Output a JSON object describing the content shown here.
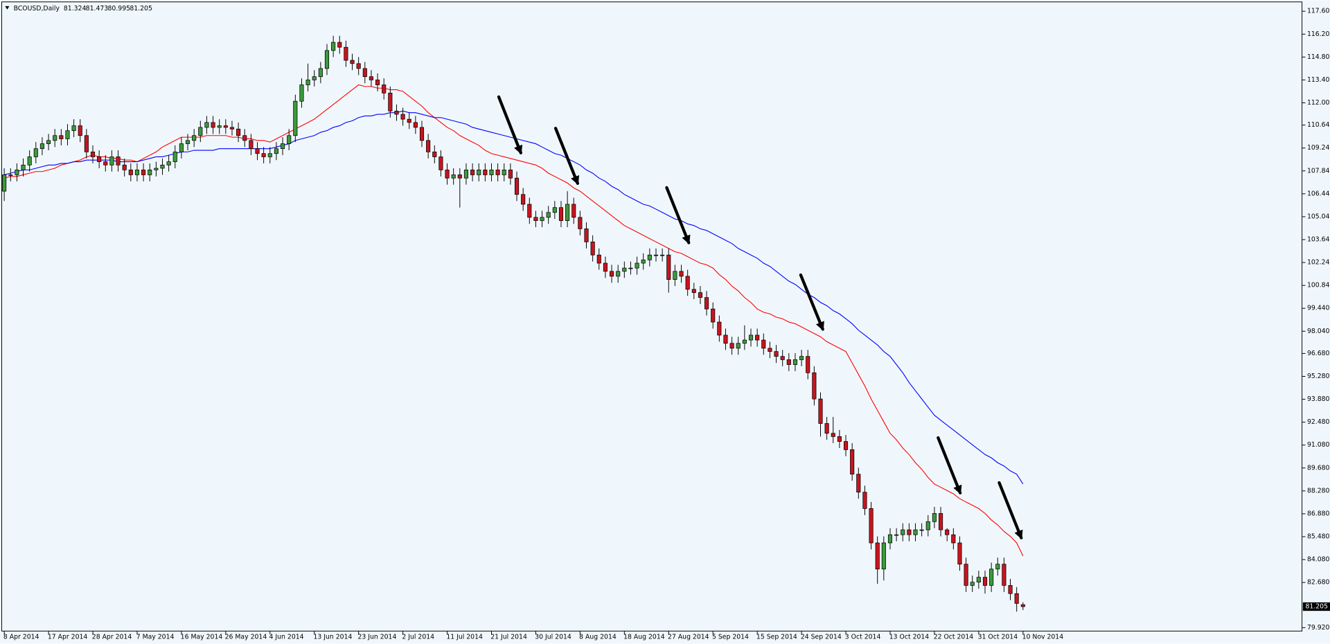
{
  "chart_data": {
    "type": "candlestick",
    "title": "BCOUSD,Daily",
    "categories": [
      "8 Apr 2014",
      null,
      null,
      null,
      null,
      null,
      null,
      "17 Apr 2014",
      null,
      null,
      null,
      null,
      null,
      null,
      "28 Apr 2014",
      null,
      null,
      null,
      null,
      null,
      null,
      "7 May 2014",
      null,
      null,
      null,
      null,
      null,
      null,
      "16 May 2014",
      null,
      null,
      null,
      null,
      null,
      null,
      "26 May 2014",
      null,
      null,
      null,
      null,
      null,
      null,
      "4 Jun 2014",
      null,
      null,
      null,
      null,
      null,
      null,
      "13 Jun 2014",
      null,
      null,
      null,
      null,
      null,
      null,
      "23 Jun 2014",
      null,
      null,
      null,
      null,
      null,
      null,
      "2 Jul 2014",
      null,
      null,
      null,
      null,
      null,
      null,
      "11 Jul 2014",
      null,
      null,
      null,
      null,
      null,
      null,
      "21 Jul 2014",
      null,
      null,
      null,
      null,
      null,
      null,
      "30 Jul 2014",
      null,
      null,
      null,
      null,
      null,
      null,
      "8 Aug 2014",
      null,
      null,
      null,
      null,
      null,
      null,
      "18 Aug 2014",
      null,
      null,
      null,
      null,
      null,
      null,
      "27 Aug 2014",
      null,
      null,
      null,
      null,
      null,
      null,
      "5 Sep 2014",
      null,
      null,
      null,
      null,
      null,
      null,
      "15 Sep 2014",
      null,
      null,
      null,
      null,
      null,
      null,
      "24 Sep 2014",
      null,
      null,
      null,
      null,
      null,
      null,
      "3 Oct 2014",
      null,
      null,
      null,
      null,
      null,
      null,
      "13 Oct 2014",
      null,
      null,
      null,
      null,
      null,
      null,
      "22 Oct 2014",
      null,
      null,
      null,
      null,
      null,
      null,
      "31 Oct 2014",
      null,
      null,
      null,
      null,
      null,
      null,
      "10 Nov 2014"
    ],
    "open": [
      106.6,
      107.6,
      107.6,
      107.9,
      108.2,
      108.7,
      109.2,
      109.5,
      109.7,
      110.0,
      109.8,
      110.3,
      110.6,
      110.0,
      109.0,
      108.7,
      108.4,
      108.2,
      108.7,
      108.2,
      107.9,
      107.6,
      107.9,
      107.6,
      107.9,
      108.0,
      108.2,
      108.4,
      109.0,
      109.5,
      109.7,
      110.0,
      110.5,
      110.8,
      110.5,
      110.6,
      110.5,
      110.4,
      110.0,
      109.7,
      109.2,
      108.9,
      108.7,
      108.9,
      109.2,
      109.5,
      110.0,
      112.1,
      113.1,
      113.4,
      113.6,
      114.1,
      115.2,
      115.7,
      115.4,
      114.6,
      114.4,
      114.1,
      113.6,
      113.4,
      113.1,
      112.6,
      111.5,
      111.3,
      111.0,
      110.8,
      110.5,
      109.7,
      109.0,
      108.7,
      107.9,
      107.4,
      107.6,
      107.4,
      107.9,
      107.6,
      107.9,
      107.6,
      107.9,
      107.6,
      107.9,
      107.4,
      106.4,
      105.8,
      105.0,
      104.8,
      105.0,
      105.3,
      105.6,
      104.8,
      105.8,
      105.0,
      104.3,
      103.5,
      102.7,
      102.2,
      101.7,
      101.4,
      101.7,
      101.9,
      101.9,
      102.2,
      102.4,
      102.7,
      102.7,
      102.7,
      101.2,
      101.7,
      101.4,
      100.6,
      100.4,
      100.1,
      99.4,
      98.6,
      97.8,
      97.3,
      97.0,
      97.3,
      97.5,
      97.8,
      97.5,
      97.0,
      96.8,
      96.5,
      96.3,
      96.0,
      96.3,
      96.5,
      95.5,
      93.9,
      92.4,
      91.8,
      91.6,
      91.3,
      90.8,
      89.3,
      88.2,
      87.2,
      85.1,
      83.5,
      85.1,
      85.6,
      85.6,
      85.9,
      85.6,
      85.9,
      85.9,
      86.4,
      86.9,
      85.9,
      85.6,
      85.1,
      83.8,
      82.5,
      82.7,
      83.0,
      82.5,
      83.5,
      83.8,
      82.5,
      82.0,
      81.324
    ],
    "high": [
      108.0,
      108.0,
      108.3,
      108.6,
      109.1,
      109.6,
      109.9,
      110.1,
      110.4,
      110.4,
      110.7,
      111.0,
      111.0,
      110.4,
      109.4,
      109.1,
      108.8,
      109.1,
      109.1,
      108.6,
      108.3,
      108.3,
      108.3,
      108.3,
      108.4,
      108.6,
      108.8,
      109.4,
      109.9,
      110.1,
      110.4,
      110.9,
      111.2,
      111.2,
      111.0,
      111.0,
      110.9,
      110.8,
      110.4,
      110.1,
      109.6,
      109.3,
      109.3,
      109.6,
      109.9,
      110.4,
      112.5,
      113.5,
      114.4,
      114.0,
      114.5,
      115.6,
      116.1,
      116.1,
      115.8,
      115.0,
      114.8,
      114.5,
      114.0,
      113.8,
      113.5,
      113.0,
      111.9,
      111.7,
      111.4,
      111.2,
      110.9,
      110.1,
      109.4,
      109.1,
      108.3,
      108.0,
      108.0,
      108.3,
      108.3,
      108.3,
      108.3,
      108.3,
      108.3,
      108.3,
      108.3,
      107.8,
      106.8,
      106.2,
      105.4,
      105.4,
      105.7,
      106.0,
      106.0,
      106.6,
      106.2,
      105.4,
      104.7,
      103.9,
      103.1,
      102.6,
      102.1,
      102.1,
      102.3,
      102.3,
      102.6,
      102.8,
      103.1,
      103.1,
      103.1,
      103.1,
      102.1,
      102.1,
      101.8,
      101.0,
      100.8,
      100.5,
      99.8,
      99.0,
      98.2,
      97.7,
      97.7,
      98.4,
      98.2,
      98.2,
      97.9,
      97.4,
      97.2,
      96.9,
      96.7,
      96.7,
      96.9,
      96.9,
      95.9,
      94.3,
      92.8,
      92.8,
      92.0,
      91.7,
      91.2,
      89.7,
      88.6,
      87.6,
      85.5,
      85.5,
      86.0,
      86.0,
      86.3,
      86.3,
      86.3,
      86.3,
      86.8,
      87.3,
      87.3,
      86.0,
      86.0,
      85.5,
      84.2,
      83.1,
      83.4,
      83.4,
      83.9,
      84.2,
      84.2,
      82.9,
      82.4,
      81.473
    ],
    "low": [
      106.0,
      107.2,
      107.2,
      107.5,
      107.8,
      108.3,
      108.8,
      109.1,
      109.3,
      109.4,
      109.4,
      109.9,
      109.6,
      108.6,
      108.3,
      108.0,
      107.8,
      107.8,
      107.8,
      107.5,
      107.2,
      107.2,
      107.2,
      107.2,
      107.5,
      107.6,
      107.8,
      108.0,
      108.6,
      109.1,
      109.3,
      109.6,
      110.1,
      110.1,
      110.1,
      110.1,
      110.0,
      109.6,
      109.3,
      108.8,
      108.5,
      108.3,
      108.3,
      108.5,
      108.8,
      109.1,
      109.6,
      111.7,
      112.7,
      113.0,
      113.2,
      113.7,
      114.8,
      115.0,
      114.2,
      114.0,
      113.7,
      113.2,
      113.0,
      112.7,
      112.2,
      111.1,
      110.9,
      110.6,
      110.4,
      110.1,
      109.3,
      108.6,
      108.3,
      107.5,
      107.0,
      107.0,
      105.6,
      107.0,
      107.2,
      107.2,
      107.2,
      107.2,
      107.2,
      107.2,
      107.0,
      106.0,
      105.4,
      104.6,
      104.4,
      104.4,
      104.6,
      104.9,
      104.4,
      104.4,
      104.6,
      103.9,
      103.1,
      102.3,
      101.8,
      101.3,
      101.0,
      101.0,
      101.3,
      101.5,
      101.5,
      101.8,
      102.0,
      102.3,
      102.3,
      100.4,
      100.8,
      101.0,
      100.2,
      100.0,
      99.7,
      99.0,
      98.2,
      97.4,
      96.9,
      96.6,
      96.6,
      96.9,
      97.1,
      97.1,
      96.6,
      96.4,
      96.1,
      95.9,
      95.6,
      95.6,
      95.9,
      95.1,
      93.5,
      91.6,
      91.4,
      91.2,
      90.9,
      90.4,
      88.9,
      87.8,
      86.8,
      84.7,
      82.6,
      82.8,
      84.7,
      85.2,
      85.2,
      85.2,
      85.2,
      85.5,
      85.5,
      86.0,
      85.5,
      85.2,
      84.7,
      83.4,
      82.1,
      82.1,
      82.3,
      82.0,
      82.1,
      83.1,
      82.1,
      81.6,
      80.9,
      80.995
    ],
    "close": [
      107.6,
      107.6,
      107.9,
      108.2,
      108.7,
      109.2,
      109.5,
      109.7,
      110.0,
      109.8,
      110.3,
      110.6,
      110.0,
      109.0,
      108.7,
      108.4,
      108.2,
      108.7,
      108.2,
      107.9,
      107.6,
      107.9,
      107.6,
      107.9,
      108.0,
      108.2,
      108.4,
      109.0,
      109.5,
      109.7,
      110.0,
      110.5,
      110.8,
      110.5,
      110.6,
      110.5,
      110.4,
      110.0,
      109.7,
      109.2,
      108.9,
      108.7,
      108.9,
      109.2,
      109.5,
      110.0,
      112.1,
      113.1,
      113.4,
      113.6,
      114.1,
      115.2,
      115.7,
      115.4,
      114.6,
      114.4,
      114.1,
      113.6,
      113.4,
      113.1,
      112.6,
      111.5,
      111.3,
      111.0,
      110.8,
      110.5,
      109.7,
      109.0,
      108.7,
      107.9,
      107.4,
      107.6,
      107.4,
      107.9,
      107.6,
      107.9,
      107.6,
      107.9,
      107.6,
      107.9,
      107.4,
      106.4,
      105.8,
      105.0,
      104.8,
      105.0,
      105.3,
      105.6,
      104.8,
      105.8,
      105.0,
      104.3,
      103.5,
      102.7,
      102.2,
      101.7,
      101.4,
      101.7,
      101.9,
      101.9,
      102.2,
      102.4,
      102.7,
      102.7,
      102.7,
      101.2,
      101.7,
      101.4,
      100.6,
      100.4,
      100.1,
      99.4,
      98.6,
      97.8,
      97.3,
      97.0,
      97.3,
      97.5,
      97.8,
      97.5,
      97.0,
      96.8,
      96.5,
      96.3,
      96.0,
      96.3,
      96.5,
      95.5,
      93.9,
      92.4,
      91.8,
      91.6,
      91.3,
      90.8,
      89.3,
      88.2,
      87.2,
      85.1,
      83.5,
      85.1,
      85.6,
      85.6,
      85.9,
      85.6,
      85.9,
      85.9,
      86.4,
      86.9,
      85.9,
      85.6,
      85.1,
      83.8,
      82.5,
      82.7,
      83.0,
      82.5,
      83.5,
      83.8,
      82.5,
      82.0,
      81.4,
      81.205
    ],
    "up_color": "#3c9a3c",
    "down_color": "#c8141e",
    "lines": [
      {
        "color": "#ff0000",
        "values": [
          107.4,
          107.5,
          107.5,
          107.6,
          107.7,
          107.8,
          107.8,
          107.9,
          108.0,
          108.2,
          108.3,
          108.4,
          108.5,
          108.7,
          108.8,
          108.7,
          108.7,
          108.6,
          108.6,
          108.5,
          108.5,
          108.4,
          108.6,
          108.8,
          109.0,
          109.3,
          109.5,
          109.7,
          109.9,
          109.9,
          109.9,
          109.9,
          110.0,
          110.0,
          110.0,
          110.0,
          109.9,
          109.9,
          109.8,
          109.8,
          109.7,
          109.7,
          109.6,
          109.8,
          110.0,
          110.2,
          110.4,
          110.6,
          110.8,
          111.0,
          111.3,
          111.6,
          111.9,
          112.2,
          112.5,
          112.8,
          113.1,
          113.0,
          113.0,
          112.9,
          112.9,
          112.8,
          112.8,
          112.7,
          112.4,
          112.1,
          111.8,
          111.4,
          111.1,
          110.8,
          110.5,
          110.3,
          110.0,
          109.8,
          109.6,
          109.4,
          109.1,
          108.9,
          108.8,
          108.7,
          108.6,
          108.5,
          108.4,
          108.3,
          108.2,
          108.0,
          107.7,
          107.5,
          107.3,
          107.1,
          106.8,
          106.6,
          106.3,
          106.0,
          105.7,
          105.4,
          105.1,
          104.8,
          104.5,
          104.3,
          104.1,
          103.9,
          103.7,
          103.5,
          103.3,
          103.1,
          102.9,
          102.8,
          102.6,
          102.4,
          102.2,
          102.1,
          101.9,
          101.5,
          101.2,
          100.8,
          100.5,
          100.1,
          99.8,
          99.4,
          99.2,
          99.1,
          98.9,
          98.8,
          98.6,
          98.5,
          98.3,
          98.1,
          97.9,
          97.7,
          97.4,
          97.2,
          97.0,
          96.8,
          96.1,
          95.4,
          94.7,
          93.9,
          93.2,
          92.5,
          91.8,
          91.4,
          90.9,
          90.5,
          90.0,
          89.6,
          89.1,
          88.7,
          88.5,
          88.3,
          88.1,
          87.8,
          87.6,
          87.4,
          87.2,
          86.9,
          86.5,
          86.2,
          85.8,
          85.5,
          85.1,
          84.3
        ]
      },
      {
        "color": "#0000ff",
        "values": [
          107.6,
          107.7,
          107.8,
          107.9,
          107.9,
          108.0,
          108.1,
          108.2,
          108.2,
          108.3,
          108.3,
          108.4,
          108.4,
          108.5,
          108.5,
          108.5,
          108.5,
          108.5,
          108.4,
          108.4,
          108.4,
          108.4,
          108.5,
          108.6,
          108.7,
          108.7,
          108.8,
          108.9,
          109.0,
          109.0,
          109.1,
          109.1,
          109.1,
          109.1,
          109.2,
          109.2,
          109.2,
          109.2,
          109.2,
          109.2,
          109.2,
          109.2,
          109.2,
          109.3,
          109.4,
          109.5,
          109.7,
          109.8,
          109.9,
          110.0,
          110.2,
          110.3,
          110.5,
          110.6,
          110.8,
          110.9,
          111.1,
          111.2,
          111.2,
          111.3,
          111.3,
          111.4,
          111.4,
          111.5,
          111.4,
          111.4,
          111.3,
          111.2,
          111.1,
          111.1,
          111.0,
          110.9,
          110.8,
          110.7,
          110.5,
          110.4,
          110.3,
          110.2,
          110.1,
          110.0,
          109.9,
          109.8,
          109.7,
          109.6,
          109.5,
          109.3,
          109.1,
          108.9,
          108.8,
          108.6,
          108.4,
          108.2,
          107.9,
          107.7,
          107.4,
          107.2,
          106.9,
          106.7,
          106.4,
          106.2,
          106.0,
          105.8,
          105.7,
          105.5,
          105.3,
          105.1,
          104.9,
          104.8,
          104.6,
          104.5,
          104.3,
          104.2,
          104.0,
          103.8,
          103.6,
          103.4,
          103.1,
          102.9,
          102.7,
          102.5,
          102.2,
          102.0,
          101.7,
          101.4,
          101.1,
          100.9,
          100.6,
          100.3,
          100.1,
          99.8,
          99.6,
          99.3,
          99.1,
          98.8,
          98.5,
          98.1,
          97.8,
          97.5,
          97.2,
          96.8,
          96.5,
          96.0,
          95.5,
          94.9,
          94.4,
          93.9,
          93.4,
          92.9,
          92.6,
          92.3,
          92.0,
          91.7,
          91.4,
          91.1,
          90.8,
          90.5,
          90.3,
          90.0,
          89.8,
          89.5,
          89.3,
          88.7
        ]
      }
    ],
    "ylim": [
      79.71,
      118.17
    ],
    "yticks": [
      {
        "value": 117.6,
        "label": "117.600"
      },
      {
        "value": 116.2,
        "label": "116.200"
      },
      {
        "value": 114.8,
        "label": "114.800"
      },
      {
        "value": 113.4,
        "label": "113.400"
      },
      {
        "value": 112.0,
        "label": "112.000"
      },
      {
        "value": 110.64,
        "label": "110.640"
      },
      {
        "value": 109.24,
        "label": "109.240"
      },
      {
        "value": 107.84,
        "label": "107.840"
      },
      {
        "value": 106.44,
        "label": "106.440"
      },
      {
        "value": 105.04,
        "label": "105.040"
      },
      {
        "value": 103.64,
        "label": "103.640"
      },
      {
        "value": 102.24,
        "label": "102.240"
      },
      {
        "value": 100.84,
        "label": "100.840"
      },
      {
        "value": 99.44,
        "label": "99.440"
      },
      {
        "value": 98.04,
        "label": "98.040"
      },
      {
        "value": 96.68,
        "label": "96.680"
      },
      {
        "value": 95.28,
        "label": "95.280"
      },
      {
        "value": 93.88,
        "label": "93.880"
      },
      {
        "value": 92.48,
        "label": "92.480"
      },
      {
        "value": 91.08,
        "label": "91.080"
      },
      {
        "value": 89.68,
        "label": "89.680"
      },
      {
        "value": 88.28,
        "label": "88.280"
      },
      {
        "value": 86.88,
        "label": "86.880"
      },
      {
        "value": 85.48,
        "label": "85.480"
      },
      {
        "value": 84.08,
        "label": "84.080"
      },
      {
        "value": 82.68,
        "label": "82.680"
      },
      {
        "value": 79.92,
        "label": "79.920"
      }
    ],
    "grid": false
  }
}
